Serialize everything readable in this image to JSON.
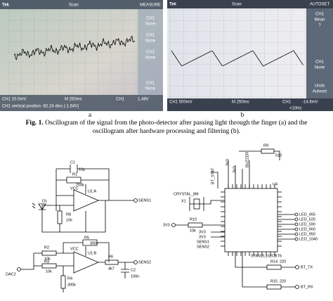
{
  "panel_a": {
    "brand": "Tek",
    "mode": "Scan",
    "menu_title": "MEASURE",
    "menu": [
      [
        "CH1",
        "None"
      ],
      [
        "CH1",
        "None"
      ],
      [
        "CH1",
        "None"
      ],
      [
        "CH1",
        "None"
      ]
    ],
    "ch_scale": "CH1 20.0mV",
    "time": "M 250ms",
    "trigger_ch": "CH1",
    "trigger_level": "1.48V",
    "status": "CH1 vertical position -82.24 divs (-1.64V)",
    "label": "a"
  },
  "panel_b": {
    "brand": "Tek",
    "mode": "Scan",
    "menu_title": "AUTOSET",
    "menu1": [
      "CH1",
      "Mean",
      "?"
    ],
    "menu2": [
      "CH1",
      "None"
    ],
    "menu3": [
      "Undo",
      "Autoset"
    ],
    "ch_scale": "CH1 500mV",
    "time": "M 250ms",
    "trigger_ch": "CH1",
    "trigger_level": "-14.6mV",
    "freq": "<10Hz",
    "label": "b"
  },
  "caption": {
    "label": "Fig. 1.",
    "lines": [
      " Oscillogram of the signal from the photo-detector after passing light through the finger (a) and the",
      "oscillogram after hardware processing and filtering (b)."
    ]
  },
  "schematic_left": {
    "c1": "C1",
    "c1_val": "10p",
    "r1": "R1",
    "r1_val": "200k",
    "vcc1": "VCC",
    "u1a": "U1:A",
    "sens1": "SENS1",
    "d1": "D1",
    "r8": "R8",
    "r8_val": "10k",
    "r5": "R5",
    "r5_val": "300k",
    "vcc2": "VCC",
    "u1b": "U1:B",
    "r6": "R6",
    "r6_val": "4k7",
    "sens2": "SENS2",
    "c2": "C2",
    "c2_val": "100n",
    "r2": "R2",
    "r2_val": "10k",
    "r3": "R3",
    "r3_val": "10k",
    "r4": "R4",
    "r4_val": "300k",
    "dac2": "DAC2"
  },
  "schematic_right": {
    "r9": "R9",
    "r9_val": "510",
    "v1": "3V3",
    "v2": "3V3",
    "buzzer": "BUZZER",
    "bt_stat": "BT_STAT",
    "u4": "U4",
    "crystal": "CRYSTAL_8M",
    "x1": "X1",
    "v3": "3V3",
    "r10": "R10",
    "r10_val": "10k",
    "leds": [
      "LED_455",
      "LED_525",
      "LED_590",
      "LED_660",
      "LED_950",
      "LED_1040"
    ],
    "sens1": "SENS1",
    "sens2": "SENS2",
    "v4": "3V3",
    "v5": "3V3",
    "chip": "STM32L152CBT6",
    "r14": "R14",
    "r14_val": "220",
    "bt_tx": "BT_TX",
    "r15": "R15",
    "r15_val": "220",
    "bt_rx": "BT_RX"
  }
}
